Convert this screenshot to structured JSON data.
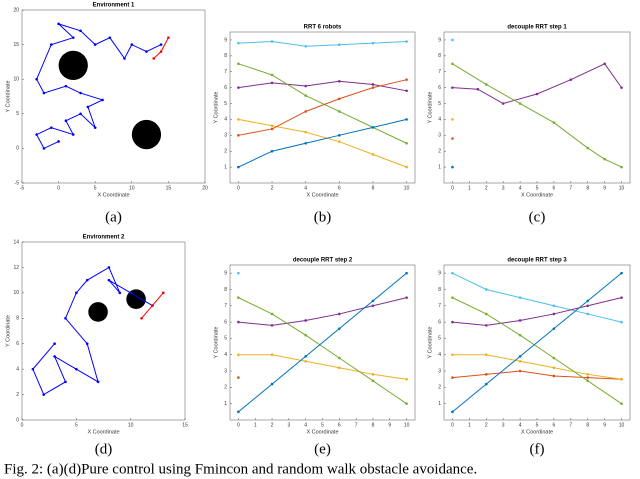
{
  "figure": {
    "caption": "Fig. 2: (a)(d)Pure control using Fmincon and random walk obstacle avoidance.",
    "panels": [
      {
        "label": "(a)",
        "type": "line",
        "title": "Environment 1",
        "xlabel": "X Coordinate",
        "ylabel": "Y Coordinate",
        "xlim": [
          -5,
          20
        ],
        "ylim": [
          -5,
          20
        ],
        "xticks": [
          -5,
          0,
          5,
          10,
          15,
          20
        ],
        "yticks": [
          -5,
          0,
          5,
          10,
          15,
          20
        ],
        "obstacles": [
          {
            "x": 2,
            "y": 12,
            "r": 2
          },
          {
            "x": 12,
            "y": 2,
            "r": 2
          }
        ],
        "series": [
          {
            "color": "#0000ff",
            "x": [
              0,
              -2,
              -3,
              -1,
              2,
              1,
              3,
              5,
              4,
              6,
              3,
              1,
              -2,
              -3,
              -1,
              2,
              0,
              3,
              5,
              7,
              9,
              10,
              12,
              14
            ],
            "y": [
              1,
              0,
              2,
              3,
              2,
              4,
              5,
              3,
              6,
              7,
              8,
              9,
              8,
              10,
              15,
              16,
              18,
              17,
              15,
              16,
              13,
              15,
              14,
              15
            ]
          },
          {
            "color": "#ff0000",
            "x": [
              13,
              14,
              15
            ],
            "y": [
              13,
              14,
              16
            ]
          }
        ]
      },
      {
        "label": "(b)",
        "type": "line",
        "title": "RRT 6 robots",
        "xlabel": "X Coordinate",
        "ylabel": "Y Coordinate",
        "xlim": [
          -0.5,
          10.5
        ],
        "ylim": [
          0,
          9.5
        ],
        "xticks": [
          0,
          2,
          4,
          6,
          8,
          10
        ],
        "yticks": [
          1,
          2,
          3,
          4,
          5,
          6,
          7,
          8,
          9
        ],
        "series": [
          {
            "color": "#4dbeee",
            "x": [
              0,
              2,
              4,
              6,
              8,
              10
            ],
            "y": [
              8.8,
              8.9,
              8.6,
              8.7,
              8.8,
              8.9
            ]
          },
          {
            "color": "#7e2f8e",
            "x": [
              0,
              2,
              4,
              6,
              8,
              10
            ],
            "y": [
              6,
              6.3,
              6.1,
              6.4,
              6.2,
              5.8
            ]
          },
          {
            "color": "#77ac30",
            "x": [
              0,
              2,
              4,
              6,
              8,
              10
            ],
            "y": [
              7.5,
              6.8,
              5.5,
              4.5,
              3.5,
              2.5
            ]
          },
          {
            "color": "#edb120",
            "x": [
              0,
              2,
              4,
              6,
              8,
              10
            ],
            "y": [
              4,
              3.6,
              3.2,
              2.6,
              1.8,
              1
            ]
          },
          {
            "color": "#d95319",
            "x": [
              0,
              2,
              4,
              6,
              8,
              10
            ],
            "y": [
              3,
              3.4,
              4.5,
              5.3,
              6,
              6.5
            ]
          },
          {
            "color": "#0072bd",
            "x": [
              0,
              2,
              4,
              6,
              8,
              10
            ],
            "y": [
              1,
              2,
              2.5,
              3,
              3.5,
              4
            ]
          }
        ]
      },
      {
        "label": "(c)",
        "type": "line",
        "title": "decouple RRT step 1",
        "xlabel": "X Coordinate",
        "ylabel": "Y Coordinate",
        "xlim": [
          -0.5,
          10.5
        ],
        "ylim": [
          0,
          9.5
        ],
        "xticks": [
          0,
          1,
          2,
          3,
          4,
          5,
          6,
          7,
          8,
          9,
          10
        ],
        "yticks": [
          1,
          2,
          3,
          4,
          5,
          6,
          7,
          8,
          9
        ],
        "series": [
          {
            "color": "#4dbeee",
            "x": [
              0
            ],
            "y": [
              9
            ]
          },
          {
            "color": "#edb120",
            "x": [
              0
            ],
            "y": [
              4
            ]
          },
          {
            "color": "#d95319",
            "x": [
              0
            ],
            "y": [
              2.8
            ]
          },
          {
            "color": "#0072bd",
            "x": [
              0
            ],
            "y": [
              1
            ]
          },
          {
            "color": "#7e2f8e",
            "x": [
              0,
              1.5,
              3,
              5,
              7,
              9,
              10
            ],
            "y": [
              6,
              5.9,
              5,
              5.6,
              6.5,
              7.5,
              6
            ]
          },
          {
            "color": "#77ac30",
            "x": [
              0,
              2,
              4,
              6,
              8,
              9,
              10
            ],
            "y": [
              7.5,
              6.2,
              5,
              3.8,
              2.2,
              1.5,
              1
            ]
          }
        ]
      },
      {
        "label": "(d)",
        "type": "line",
        "title": "Environment 2",
        "xlabel": "X Coordinate",
        "ylabel": "Y Coordinate",
        "xlim": [
          0,
          15
        ],
        "ylim": [
          0,
          14
        ],
        "xticks": [
          0,
          5,
          10,
          15
        ],
        "yticks": [
          0,
          2,
          4,
          6,
          8,
          10,
          12,
          14
        ],
        "obstacles": [
          {
            "x": 7,
            "y": 8.5,
            "r": 0.9
          },
          {
            "x": 10.5,
            "y": 9.5,
            "r": 0.9
          }
        ],
        "series": [
          {
            "color": "#0000ff",
            "x": [
              3,
              1,
              2,
              4,
              3,
              5,
              7,
              6,
              4,
              5,
              6,
              8,
              9,
              8,
              10,
              12
            ],
            "y": [
              6,
              4,
              2,
              3,
              5,
              4,
              3,
              6,
              8,
              10,
              11,
              12,
              10,
              11,
              10,
              9
            ]
          },
          {
            "color": "#ff0000",
            "x": [
              11,
              12,
              13
            ],
            "y": [
              8,
              9,
              10
            ]
          }
        ]
      },
      {
        "label": "(e)",
        "type": "line",
        "title": "decouple RRT step 2",
        "xlabel": "X Coordinate",
        "ylabel": "Y Coordinate",
        "xlim": [
          -0.5,
          10.5
        ],
        "ylim": [
          0,
          9.5
        ],
        "xticks": [
          0,
          1,
          2,
          3,
          4,
          5,
          6,
          7,
          8,
          9,
          10
        ],
        "yticks": [
          1,
          2,
          3,
          4,
          5,
          6,
          7,
          8,
          9
        ],
        "series": [
          {
            "color": "#4dbeee",
            "x": [
              0
            ],
            "y": [
              9
            ]
          },
          {
            "color": "#d95319",
            "x": [
              0
            ],
            "y": [
              2.6
            ]
          },
          {
            "color": "#edb120",
            "x": [
              0,
              2,
              4,
              6,
              8,
              10
            ],
            "y": [
              4,
              4,
              3.6,
              3.2,
              2.8,
              2.5
            ]
          },
          {
            "color": "#7e2f8e",
            "x": [
              0,
              2,
              4,
              6,
              8,
              10
            ],
            "y": [
              6,
              5.8,
              6.1,
              6.5,
              7,
              7.5
            ]
          },
          {
            "color": "#77ac30",
            "x": [
              0,
              2,
              4,
              6,
              8,
              10
            ],
            "y": [
              7.5,
              6.5,
              5.2,
              3.8,
              2.4,
              1
            ]
          },
          {
            "color": "#0072bd",
            "x": [
              0,
              2,
              4,
              6,
              8,
              10
            ],
            "y": [
              0.5,
              2.2,
              3.9,
              5.6,
              7.3,
              9
            ]
          }
        ]
      },
      {
        "label": "(f)",
        "type": "line",
        "title": "decouple RRT step 3",
        "xlabel": "X Coordinate",
        "ylabel": "Y Coordinate",
        "xlim": [
          -0.5,
          10.5
        ],
        "ylim": [
          0,
          9.5
        ],
        "xticks": [
          0,
          1,
          2,
          3,
          4,
          5,
          6,
          7,
          8,
          9,
          10
        ],
        "yticks": [
          1,
          2,
          3,
          4,
          5,
          6,
          7,
          8,
          9
        ],
        "series": [
          {
            "color": "#4dbeee",
            "x": [
              0,
              2,
              4,
              6,
              8,
              10
            ],
            "y": [
              9,
              8,
              7.5,
              7,
              6.5,
              6
            ]
          },
          {
            "color": "#d95319",
            "x": [
              0,
              2,
              4,
              6,
              8,
              10
            ],
            "y": [
              2.6,
              2.8,
              3,
              2.7,
              2.6,
              2.5
            ]
          },
          {
            "color": "#edb120",
            "x": [
              0,
              2,
              4,
              6,
              8,
              10
            ],
            "y": [
              4,
              4,
              3.6,
              3.2,
              2.8,
              2.5
            ]
          },
          {
            "color": "#7e2f8e",
            "x": [
              0,
              2,
              4,
              6,
              8,
              10
            ],
            "y": [
              6,
              5.8,
              6.1,
              6.5,
              7,
              7.5
            ]
          },
          {
            "color": "#77ac30",
            "x": [
              0,
              2,
              4,
              6,
              8,
              10
            ],
            "y": [
              7.5,
              6.5,
              5.2,
              3.8,
              2.4,
              1
            ]
          },
          {
            "color": "#0072bd",
            "x": [
              0,
              2,
              4,
              6,
              8,
              10
            ],
            "y": [
              0.5,
              2.2,
              3.9,
              5.6,
              7.3,
              9
            ]
          }
        ]
      }
    ]
  }
}
